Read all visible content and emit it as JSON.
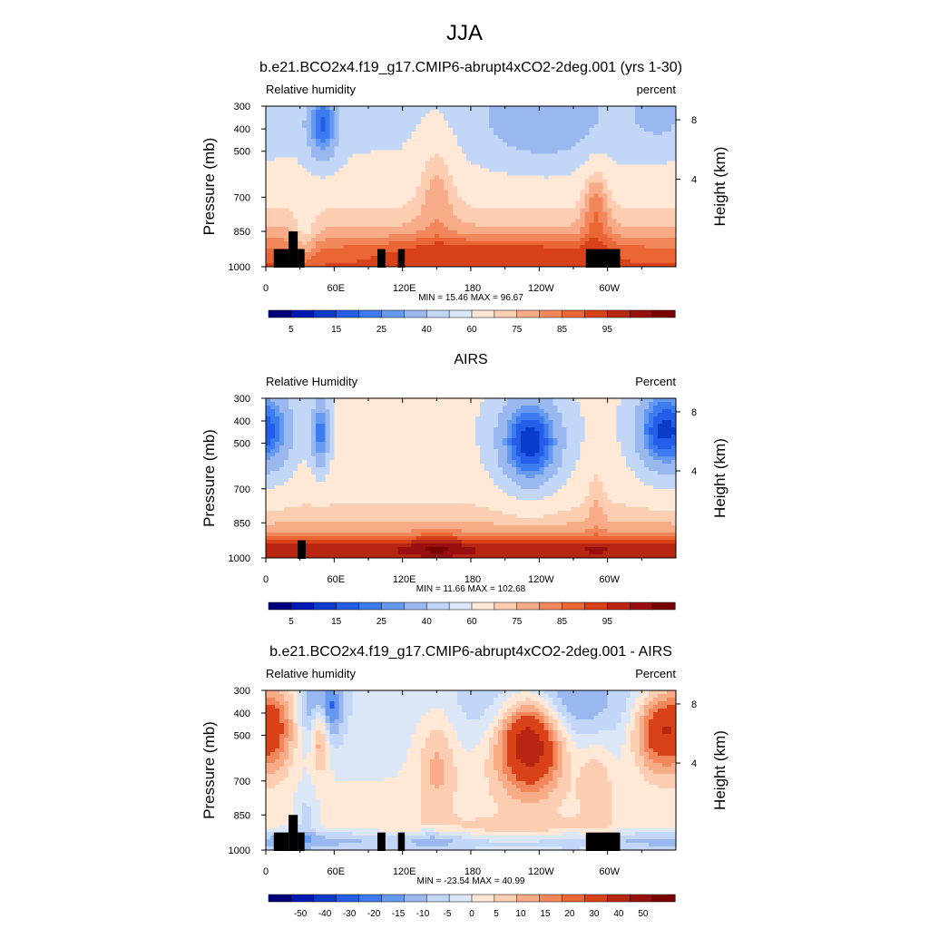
{
  "title": "JJA",
  "chart_data": [
    {
      "type": "heatmap",
      "title": "b.e21.BCO2x4.f19_g17.CMIP6-abrupt4xCO2-2deg.001 (yrs 1-30)",
      "left_label": "Relative humidity",
      "right_label": "percent",
      "ylabel": "Pressure (mb)",
      "y2label": "Height (km)",
      "y_ticks": [
        "300",
        "400",
        "500",
        "700",
        "850",
        "1000"
      ],
      "y2_ticks": [
        "8",
        "4"
      ],
      "x_ticks": [
        "0",
        "60E",
        "120E",
        "180",
        "120W",
        "60W"
      ],
      "stats": "MIN =  15.46  MAX =  96.67",
      "colorbar_labels": [
        "5",
        "15",
        "25",
        "40",
        "60",
        "75",
        "85",
        "95"
      ],
      "colorbar_levels": [
        0,
        5,
        10,
        15,
        20,
        25,
        30,
        40,
        50,
        60,
        65,
        70,
        75,
        80,
        85,
        90,
        95,
        100
      ],
      "field": "model"
    },
    {
      "type": "heatmap",
      "title": "AIRS",
      "left_label": "Relative Humidity",
      "right_label": "Percent",
      "ylabel": "Pressure (mb)",
      "y2label": "Height (km)",
      "y_ticks": [
        "300",
        "400",
        "500",
        "700",
        "850",
        "1000"
      ],
      "y2_ticks": [
        "8",
        "4"
      ],
      "x_ticks": [
        "0",
        "60E",
        "120E",
        "180",
        "120W",
        "60W"
      ],
      "stats": "MIN =  11.66  MAX = 102.68",
      "colorbar_labels": [
        "5",
        "15",
        "25",
        "40",
        "60",
        "75",
        "85",
        "95"
      ],
      "colorbar_levels": [
        0,
        5,
        10,
        15,
        20,
        25,
        30,
        40,
        50,
        60,
        65,
        70,
        75,
        80,
        85,
        90,
        95,
        100
      ],
      "field": "obs"
    },
    {
      "type": "heatmap",
      "title": "b.e21.BCO2x4.f19_g17.CMIP6-abrupt4xCO2-2deg.001 - AIRS",
      "left_label": "Relative humidity",
      "right_label": "Percent",
      "ylabel": "Pressure (mb)",
      "y2label": "Height (km)",
      "y_ticks": [
        "300",
        "400",
        "500",
        "700",
        "850",
        "1000"
      ],
      "y2_ticks": [
        "8",
        "4"
      ],
      "x_ticks": [
        "0",
        "60E",
        "120E",
        "180",
        "120W",
        "60W"
      ],
      "stats": "MIN = -23.54  MAX =  40.99",
      "colorbar_labels": [
        "-50",
        "-40",
        "-30",
        "-20",
        "-15",
        "-10",
        "-5",
        "0",
        "5",
        "10",
        "15",
        "20",
        "30",
        "40",
        "50"
      ],
      "colorbar_levels": [
        -60,
        -50,
        -40,
        -30,
        -20,
        -15,
        -10,
        -5,
        0,
        5,
        10,
        15,
        20,
        30,
        40,
        50,
        60
      ],
      "field": "diff"
    }
  ],
  "colors": {
    "scale": [
      "#00007f",
      "#0019b2",
      "#0a3ccc",
      "#245ee8",
      "#3d7bf0",
      "#6699f0",
      "#99b8f0",
      "#c2d6f7",
      "#dbe7f7",
      "#ffe8d6",
      "#fccdb1",
      "#f7ab86",
      "#f2875c",
      "#eb6635",
      "#d94219",
      "#b82612",
      "#990e0e",
      "#7a0000"
    ],
    "topography": "#000000"
  }
}
